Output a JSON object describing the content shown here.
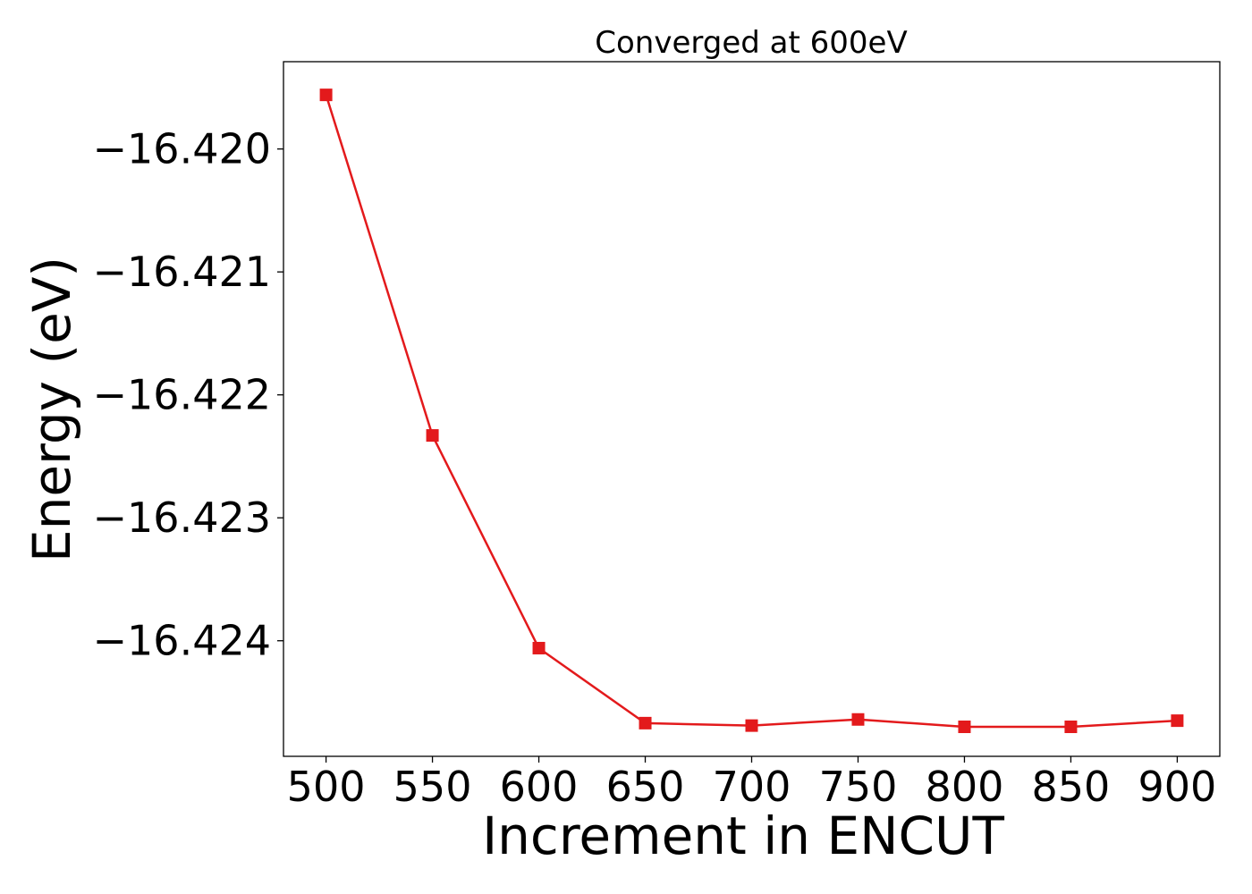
{
  "chart_data": {
    "type": "line",
    "title": "Converged at 600eV",
    "xlabel": "Increment in ENCUT",
    "ylabel": "Energy (eV)",
    "x": [
      500,
      550,
      600,
      650,
      700,
      750,
      800,
      850,
      900
    ],
    "series": [
      {
        "values": [
          -16.41956,
          -16.42233,
          -16.42406,
          -16.42467,
          -16.42469,
          -16.42464,
          -16.4247,
          -16.4247,
          -16.42465
        ],
        "color": "#e31a1c",
        "marker": "square"
      }
    ],
    "xticks": [
      500,
      550,
      600,
      650,
      700,
      750,
      800,
      850,
      900
    ],
    "xtick_labels": [
      "500",
      "550",
      "600",
      "650",
      "700",
      "750",
      "800",
      "850",
      "900"
    ],
    "yticks": [
      -16.42,
      -16.421,
      -16.422,
      -16.423,
      -16.424
    ],
    "ytick_labels": [
      "−16.420",
      "−16.421",
      "−16.422",
      "−16.423",
      "−16.424"
    ],
    "xlim": [
      480,
      920
    ],
    "ylim": [
      -16.42494,
      -16.41929
    ],
    "grid": false,
    "legend": "none"
  }
}
